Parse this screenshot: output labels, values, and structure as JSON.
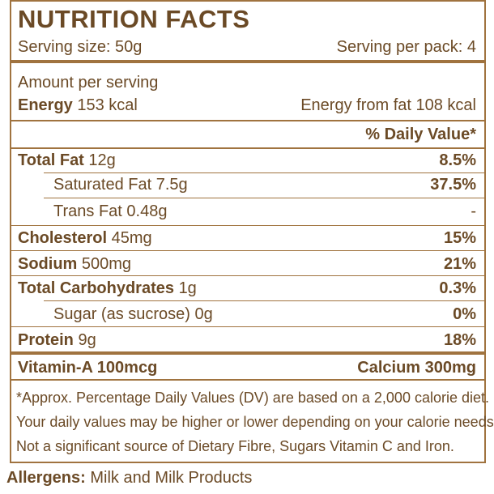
{
  "label": {
    "title": "NUTRITION FACTS",
    "serving_size": "Serving size: 50g",
    "servings_per_pack": "Serving per pack: 4",
    "amount_per_serving": "Amount per serving",
    "energy_label": "Energy",
    "energy_value": "153 kcal",
    "energy_from_fat": "Energy from fat 108 kcal",
    "daily_value_header": "% Daily Value*",
    "rows": [
      {
        "label": "Total Fat",
        "amount": "12g",
        "dv": "8.5%"
      },
      {
        "label": "Saturated Fat",
        "amount": "7.5g",
        "dv": "37.5%"
      },
      {
        "label": "Trans Fat",
        "amount": "0.48g",
        "dv": "-"
      },
      {
        "label": "Cholesterol",
        "amount": "45mg",
        "dv": "15%"
      },
      {
        "label": "Sodium",
        "amount": "500mg",
        "dv": "21%"
      },
      {
        "label": "Total Carbohydrates",
        "amount": "1g",
        "dv": "0.3%"
      },
      {
        "label": "Sugar (as sucrose)",
        "amount": "0g",
        "dv": "0%"
      },
      {
        "label": "Protein",
        "amount": "9g",
        "dv": "18%"
      }
    ],
    "vitamin_a": "Vitamin-A 100mcg",
    "calcium": "Calcium 300mg",
    "footnotes": [
      "*Approx. Percentage Daily Values (DV) are based on a 2,000 calorie diet.",
      "Your daily values may be higher or lower depending on your calorie needs.",
      "Not a significant source of Dietary Fibre, Sugars Vitamin C and Iron."
    ]
  },
  "allergens": {
    "label": "Allergens:",
    "text": "Milk and Milk Products"
  },
  "colors": {
    "brown": "#6b4a26",
    "border": "#a0733f"
  }
}
